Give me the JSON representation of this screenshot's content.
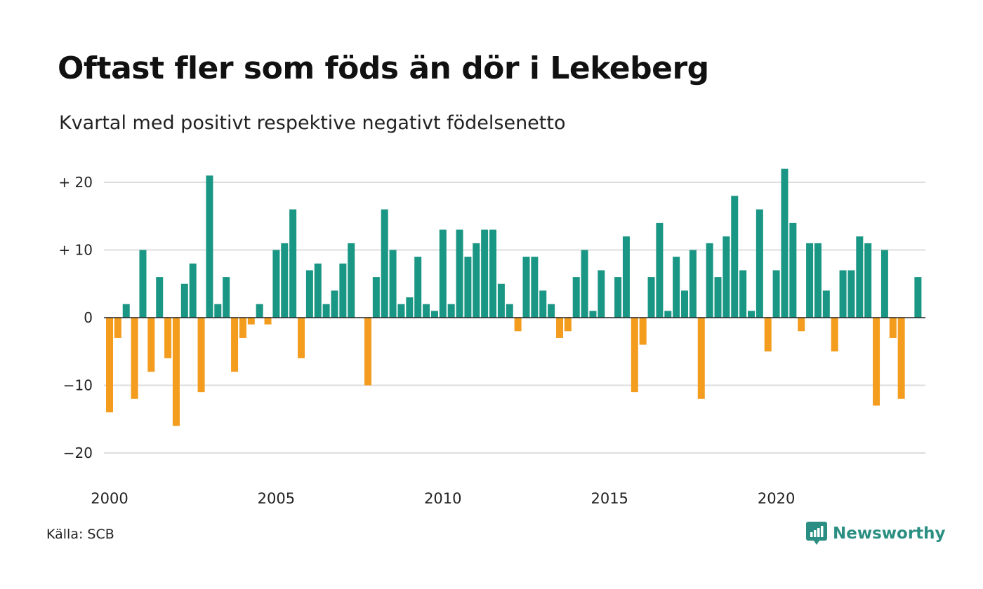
{
  "chart_data": {
    "type": "bar",
    "title": "Oftast fler som föds än dör i Lekeberg",
    "subtitle": "Kvartal med positivt respektive negativt födelsenetto",
    "x_tick_labels": [
      "2000",
      "2005",
      "2010",
      "2015",
      "2020"
    ],
    "y_tick_labels": [
      "+ 20",
      "+ 10",
      "0",
      "−10",
      "−20"
    ],
    "ylim": [
      -24,
      22
    ],
    "grid": true,
    "first_quarter": "2000 Q1",
    "values": [
      -14,
      -3,
      2,
      -12,
      10,
      -8,
      6,
      -6,
      -16,
      5,
      8,
      -11,
      21,
      2,
      6,
      -8,
      -3,
      -1,
      2,
      -1,
      10,
      11,
      16,
      -6,
      7,
      8,
      2,
      4,
      8,
      11,
      0,
      -10,
      6,
      16,
      10,
      2,
      3,
      9,
      2,
      1,
      13,
      2,
      13,
      9,
      11,
      13,
      13,
      5,
      2,
      -2,
      9,
      9,
      4,
      2,
      -3,
      -2,
      6,
      10,
      1,
      7,
      0,
      6,
      12,
      -11,
      -4,
      6,
      14,
      1,
      9,
      4,
      10,
      -12,
      11,
      6,
      12,
      18,
      7,
      1,
      16,
      -5,
      7,
      22,
      14,
      -2,
      11,
      11,
      4,
      -5,
      7,
      7,
      12,
      11,
      -13,
      10,
      -3,
      -12,
      0,
      6
    ],
    "colors": {
      "positive": "#1a9684",
      "negative": "#f39c1e",
      "grid": "#dddddd",
      "baseline": "#222222"
    }
  },
  "source": "Källa: SCB",
  "brand": {
    "name": "Newsworthy",
    "icon": "newsworthy-logo-icon",
    "color": "#2a8f82"
  }
}
